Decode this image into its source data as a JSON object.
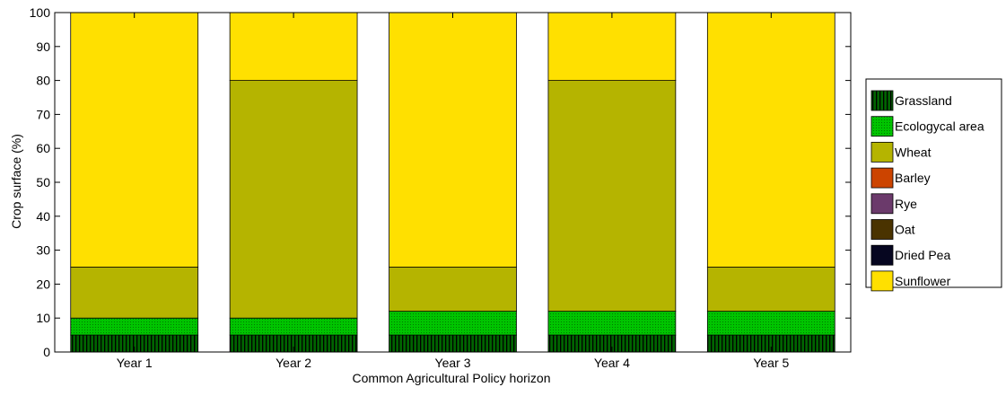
{
  "chart_data": {
    "type": "bar",
    "stacked": true,
    "categories": [
      "Year 1",
      "Year 2",
      "Year 3",
      "Year 4",
      "Year 5"
    ],
    "series": [
      {
        "name": "Grassland",
        "color": "#006400",
        "pattern": "vertical-stripes",
        "values": [
          5,
          5,
          5,
          5,
          5
        ]
      },
      {
        "name": "Ecologycal area",
        "color": "#00C400",
        "pattern": "dots",
        "values": [
          5,
          5,
          7,
          7,
          7
        ]
      },
      {
        "name": "Wheat",
        "color": "#B5B400",
        "pattern": "solid",
        "values": [
          15,
          70,
          13,
          68,
          13
        ]
      },
      {
        "name": "Barley",
        "color": "#CC4400",
        "pattern": "solid",
        "values": [
          0,
          0,
          0,
          0,
          0
        ]
      },
      {
        "name": "Rye",
        "color": "#6B3A6B",
        "pattern": "solid",
        "values": [
          0,
          0,
          0,
          0,
          0
        ]
      },
      {
        "name": "Oat",
        "color": "#4A3300",
        "pattern": "solid",
        "values": [
          0,
          0,
          0,
          0,
          0
        ]
      },
      {
        "name": "Dried Pea",
        "color": "#060620",
        "pattern": "solid",
        "values": [
          0,
          0,
          0,
          0,
          0
        ]
      },
      {
        "name": "Sunflower",
        "color": "#FFE000",
        "pattern": "solid",
        "values": [
          75,
          20,
          75,
          20,
          75
        ]
      }
    ],
    "xlabel": "Common Agricultural Policy horizon",
    "ylabel": "Crop surface (%)",
    "ylim": [
      0,
      100
    ],
    "yticks": [
      0,
      10,
      20,
      30,
      40,
      50,
      60,
      70,
      80,
      90,
      100
    ],
    "grid": false,
    "legend_position": "right"
  }
}
